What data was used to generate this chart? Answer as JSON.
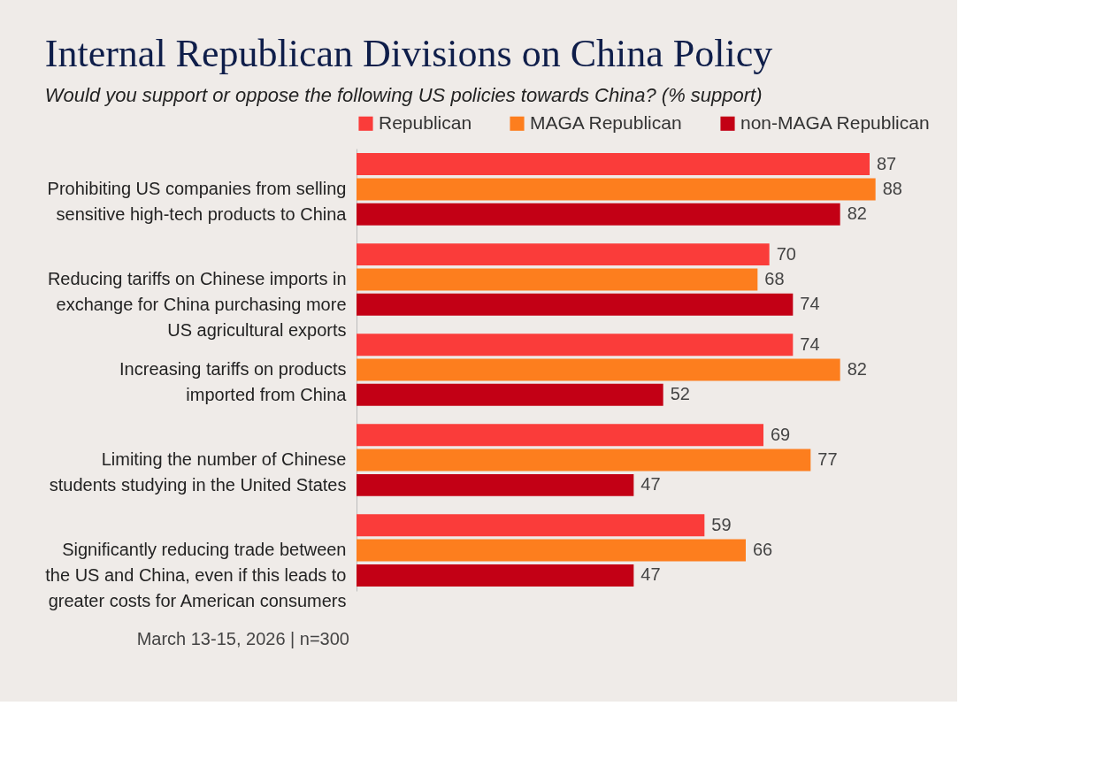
{
  "chart_data": {
    "type": "bar",
    "orientation": "horizontal",
    "title": "Internal Republican Divisions on China Policy",
    "subtitle": "Would you support or oppose the following US policies towards China? (% support)",
    "categories": [
      "Prohibiting US companies from selling\nsensitive high-tech products to China",
      "Reducing tariffs on Chinese imports in\nexchange for China purchasing more\nUS agricultural exports",
      "Increasing tariffs on products\nimported from China",
      "Limiting the number of Chinese\nstudents studying in the United States",
      "Significantly reducing trade between\nthe US and China, even if this leads to\ngreater costs for American consumers"
    ],
    "series": [
      {
        "name": "Republican",
        "color": "#fa3c3a",
        "values": [
          87,
          70,
          74,
          69,
          59
        ]
      },
      {
        "name": "MAGA Republican",
        "color": "#fd7e1e",
        "values": [
          88,
          68,
          82,
          77,
          66
        ]
      },
      {
        "name": "non-MAGA Republican",
        "color": "#c30015",
        "values": [
          82,
          74,
          52,
          47,
          47
        ]
      }
    ],
    "data_labels": true,
    "legend": "top",
    "grid": false,
    "tick_labels": "y",
    "annotations": [
      "March 13-15, 2026 | n=300"
    ]
  }
}
